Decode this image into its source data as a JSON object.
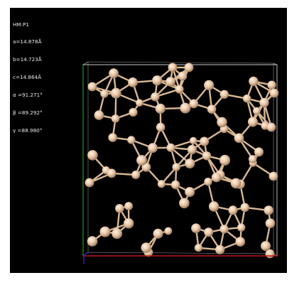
{
  "cell_info": {
    "space_group": "HM:P1",
    "a": "a=14.878Å",
    "b": "b=14.723Å",
    "c": "c=14.864Å",
    "alpha": "α =91.271°",
    "beta": "β =89.292°",
    "gamma": "γ =88.980°"
  },
  "colors": {
    "background": "#000000",
    "atom": "#e7c5a5",
    "bond": "#d9b895",
    "cell_edge": "#c8c8c8",
    "axis_a": "#c01818",
    "axis_b": "#18a018",
    "axis_c": "#2828d0"
  },
  "atom_count_shown": "many"
}
